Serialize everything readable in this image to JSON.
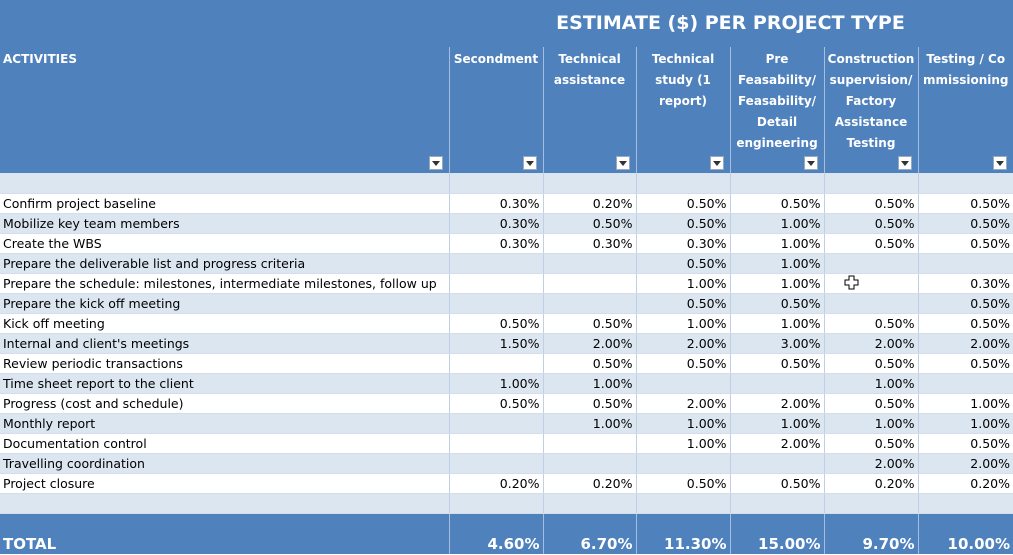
{
  "title": "ESTIMATE ($) PER PROJECT TYPE",
  "columns": [
    "ACTIVITIES",
    "Secondment",
    "Technical assistance",
    "Technical study (1 report)",
    "Pre Feasability/ Feasability/ Detail engineering",
    "Construction supervision/ Factory Assistance Testing",
    "Testing / Commissioning"
  ],
  "rows": [
    {
      "activity": "Confirm project baseline",
      "values": [
        "0.30%",
        "0.20%",
        "0.50%",
        "0.50%",
        "0.50%",
        "0.50%"
      ]
    },
    {
      "activity": "Mobilize key team members",
      "values": [
        "0.30%",
        "0.50%",
        "0.50%",
        "1.00%",
        "0.50%",
        "0.50%"
      ]
    },
    {
      "activity": "Create the WBS",
      "values": [
        "0.30%",
        "0.30%",
        "0.30%",
        "1.00%",
        "0.50%",
        "0.50%"
      ]
    },
    {
      "activity": "Prepare the deliverable list and progress criteria",
      "values": [
        "",
        "",
        "0.50%",
        "1.00%",
        "",
        ""
      ]
    },
    {
      "activity": "Prepare the schedule: milestones, intermediate milestones, follow up",
      "values": [
        "",
        "",
        "1.00%",
        "1.00%",
        "",
        "0.30%"
      ]
    },
    {
      "activity": "Prepare the kick off meeting",
      "values": [
        "",
        "",
        "0.50%",
        "0.50%",
        "",
        "0.50%"
      ]
    },
    {
      "activity": "Kick off meeting",
      "values": [
        "0.50%",
        "0.50%",
        "1.00%",
        "1.00%",
        "0.50%",
        "0.50%"
      ]
    },
    {
      "activity": "Internal and client's meetings",
      "values": [
        "1.50%",
        "2.00%",
        "2.00%",
        "3.00%",
        "2.00%",
        "2.00%"
      ]
    },
    {
      "activity": "Review periodic transactions",
      "values": [
        "",
        "0.50%",
        "0.50%",
        "0.50%",
        "0.50%",
        "0.50%"
      ]
    },
    {
      "activity": "Time sheet report to the client",
      "values": [
        "1.00%",
        "1.00%",
        "",
        "",
        "1.00%",
        ""
      ]
    },
    {
      "activity": "Progress (cost and schedule)",
      "values": [
        "0.50%",
        "0.50%",
        "2.00%",
        "2.00%",
        "0.50%",
        "1.00%"
      ]
    },
    {
      "activity": "Monthly report",
      "values": [
        "",
        "1.00%",
        "1.00%",
        "1.00%",
        "1.00%",
        "1.00%"
      ]
    },
    {
      "activity": "Documentation control",
      "values": [
        "",
        "",
        "1.00%",
        "2.00%",
        "0.50%",
        "0.50%"
      ]
    },
    {
      "activity": "Travelling coordination",
      "values": [
        "",
        "",
        "",
        "",
        "2.00%",
        "2.00%"
      ]
    },
    {
      "activity": "Project closure",
      "values": [
        "0.20%",
        "0.20%",
        "0.50%",
        "0.50%",
        "0.20%",
        "0.20%"
      ]
    }
  ],
  "total": {
    "label": "TOTAL",
    "values": [
      "4.60%",
      "6.70%",
      "11.30%",
      "15.00%",
      "9.70%",
      "10.00%"
    ]
  },
  "colors": {
    "header": "#4f81bd",
    "band": "#dce6f1"
  }
}
